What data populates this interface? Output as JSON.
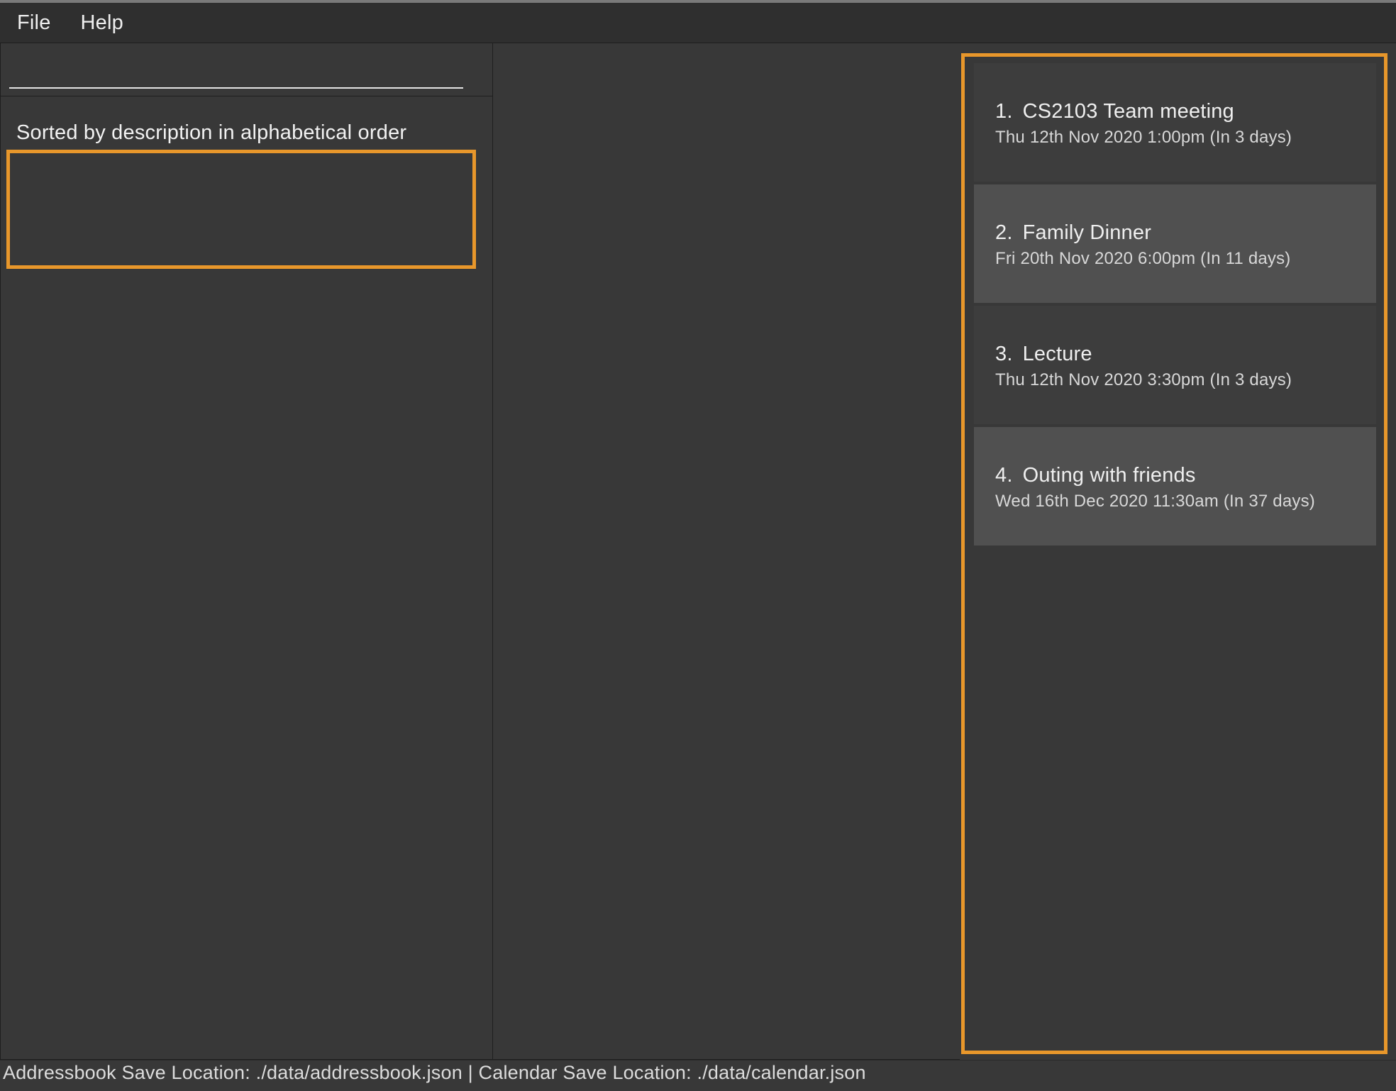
{
  "colors": {
    "background": "#383838",
    "menubar_bg": "#2f2f2f",
    "card_dark": "#3d3d3d",
    "card_light": "#505050",
    "highlight_border": "#e8972b",
    "text_primary": "#efefef",
    "text_secondary": "#d8d8d8",
    "panel_border": "#1e1e1e",
    "input_underline": "#e4e4e4"
  },
  "menubar": {
    "file": "File",
    "help": "Help"
  },
  "left": {
    "input_value": "",
    "message": "Sorted by description in alphabetical order"
  },
  "events": [
    {
      "index": "1.",
      "title": "CS2103 Team meeting",
      "subtitle": "Thu 12th Nov 2020 1:00pm (In 3 days)",
      "shade": "dark"
    },
    {
      "index": "2.",
      "title": "Family Dinner",
      "subtitle": "Fri 20th Nov 2020 6:00pm (In 11 days)",
      "shade": "light"
    },
    {
      "index": "3.",
      "title": "Lecture",
      "subtitle": "Thu 12th Nov 2020 3:30pm (In 3 days)",
      "shade": "dark"
    },
    {
      "index": "4.",
      "title": "Outing with friends",
      "subtitle": "Wed 16th Dec 2020 11:30am (In 37 days)",
      "shade": "light"
    }
  ],
  "statusbar": {
    "text": "Addressbook Save Location: ./data/addressbook.json | Calendar Save Location: ./data/calendar.json"
  }
}
